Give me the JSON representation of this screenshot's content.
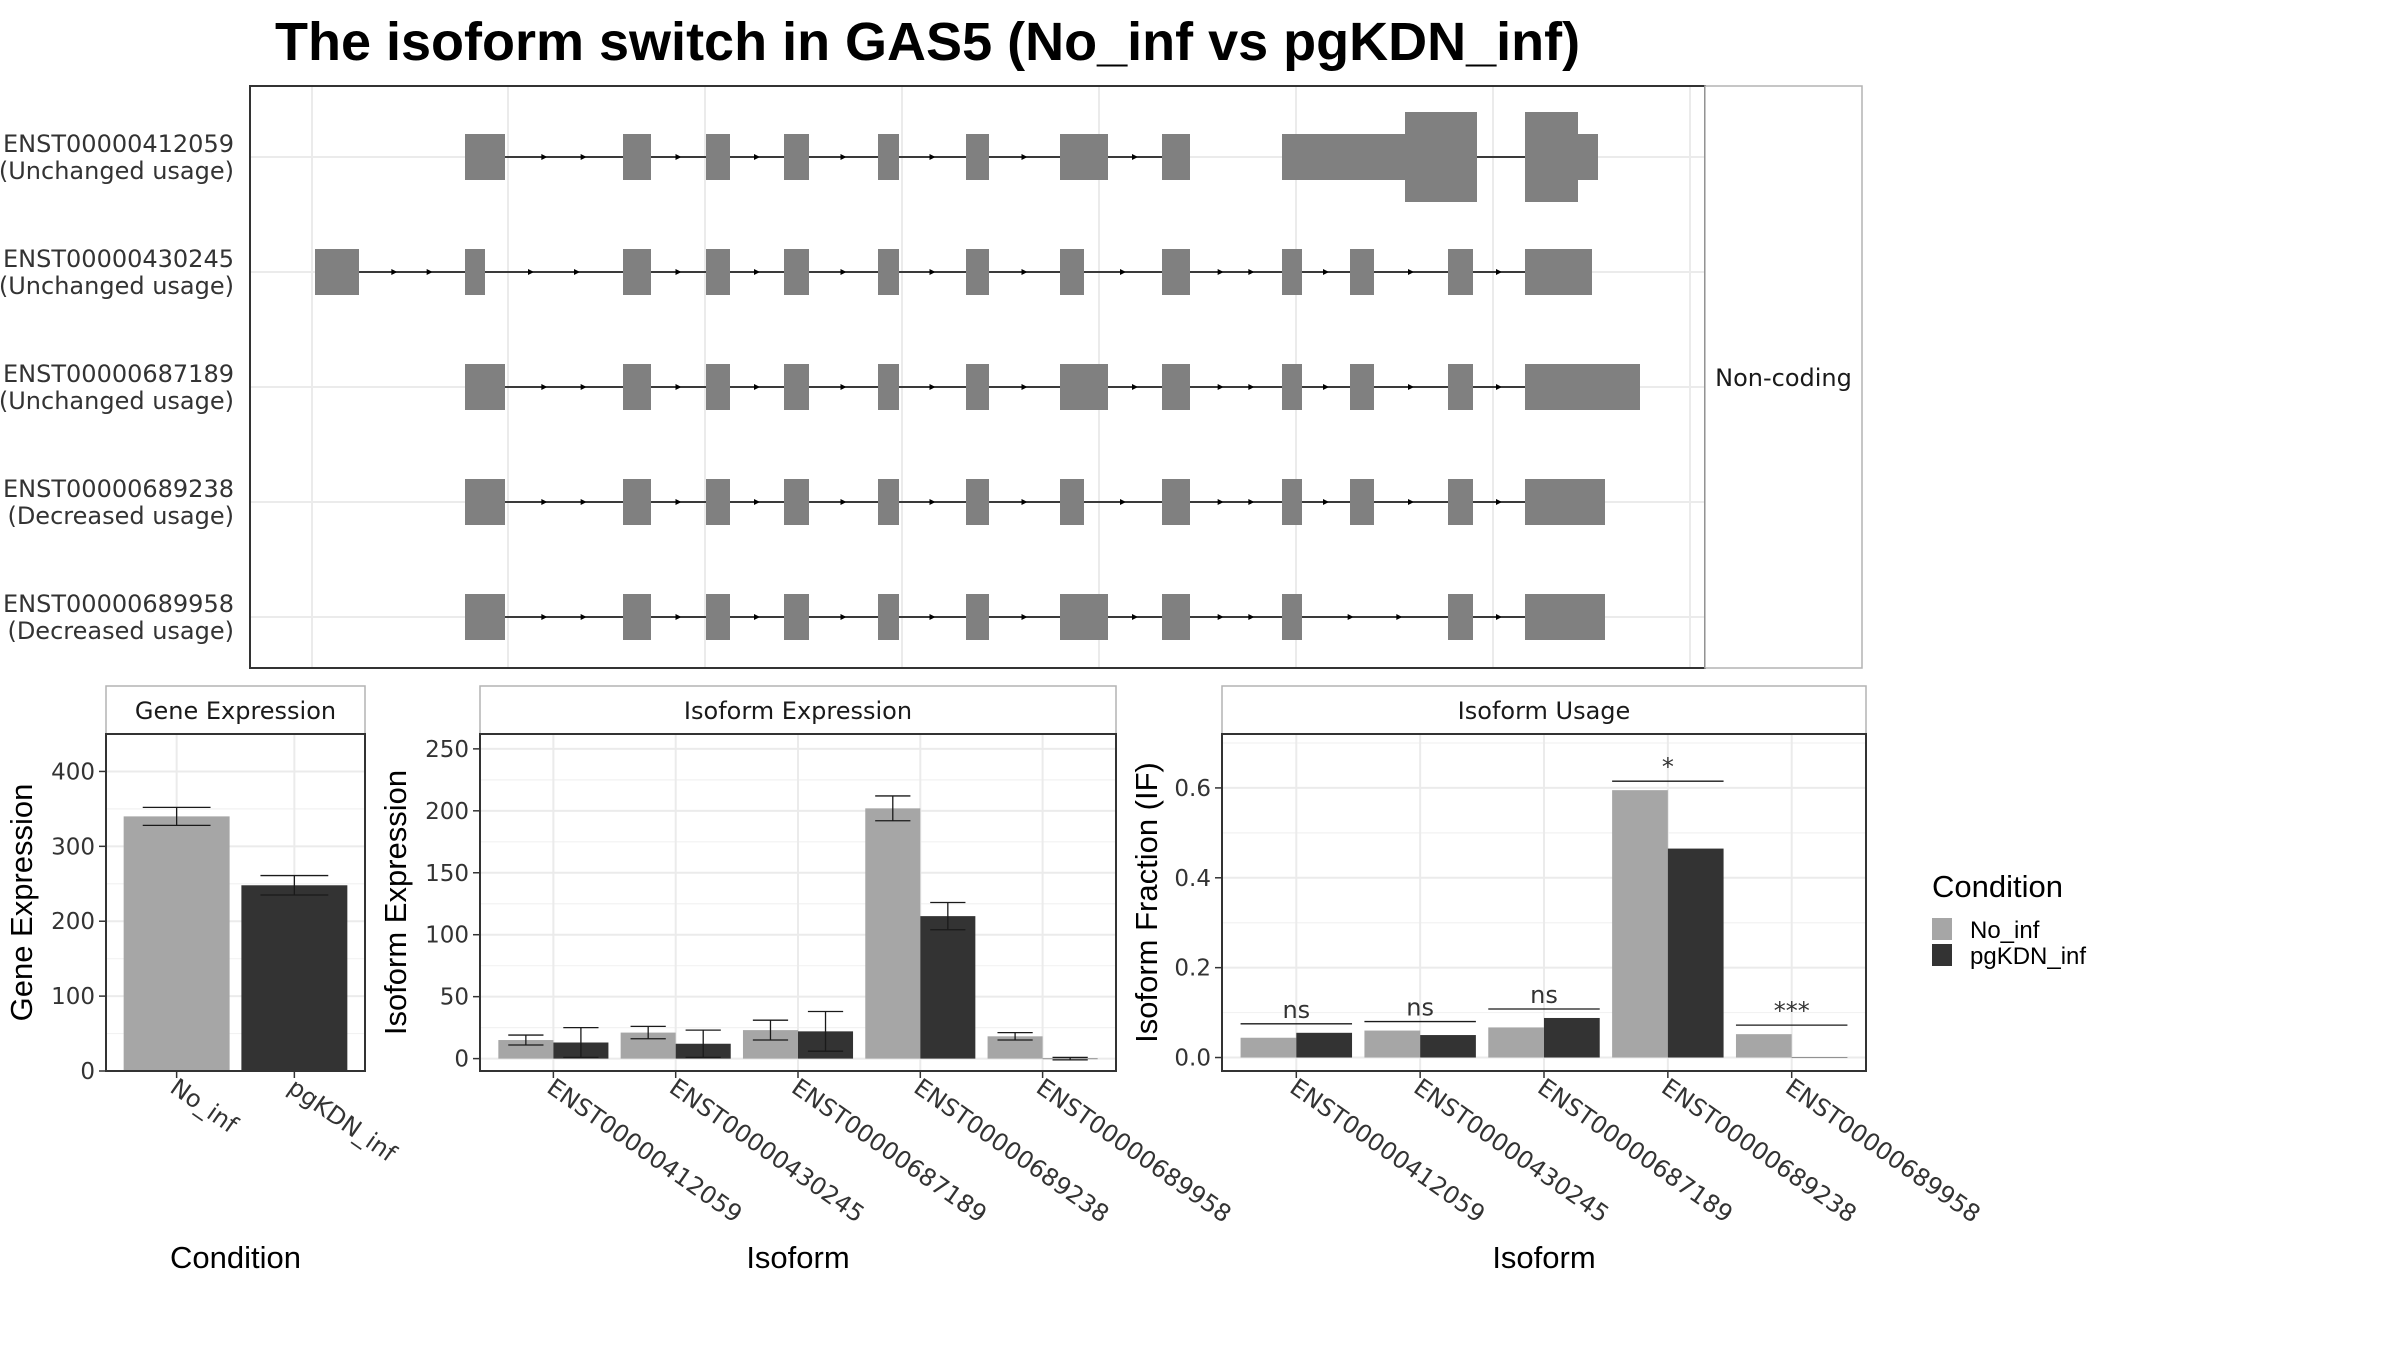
{
  "title": "The isoform switch in GAS5 (No_inf vs pgKDN_inf)",
  "colors": {
    "No_inf": "#a6a6a6",
    "pgKDN_inf": "#333333",
    "exon": "#808080",
    "grid": "#ebebeb",
    "panel_border": "#333333",
    "strip_border": "#b3b3b3"
  },
  "structure": {
    "facet_label": "Non-coding",
    "isoforms": [
      {
        "id": "ENST00000412059",
        "usage": "(Unchanged usage)"
      },
      {
        "id": "ENST00000430245",
        "usage": "(Unchanged usage)"
      },
      {
        "id": "ENST00000687189",
        "usage": "(Unchanged usage)"
      },
      {
        "id": "ENST00000689238",
        "usage": "(Decreased usage)"
      },
      {
        "id": "ENST00000689958",
        "usage": "(Decreased usage)"
      }
    ]
  },
  "legend": {
    "title": "Condition",
    "items": [
      "No_inf",
      "pgKDN_inf"
    ]
  },
  "chart_data": [
    {
      "type": "bar",
      "title": "Gene Expression",
      "xlabel": "Condition",
      "ylabel": "Gene Expression",
      "categories": [
        "No_inf",
        "pgKDN_inf"
      ],
      "values": [
        340,
        248
      ],
      "error": [
        12,
        13
      ],
      "ylim": [
        0,
        450
      ],
      "yticks": [
        0,
        100,
        200,
        300,
        400
      ],
      "grid": true
    },
    {
      "type": "bar",
      "title": "Isoform Expression",
      "xlabel": "Isoform",
      "ylabel": "Isoform Expression",
      "categories": [
        "ENST00000412059",
        "ENST00000430245",
        "ENST00000687189",
        "ENST00000689238",
        "ENST00000689958"
      ],
      "series": [
        {
          "name": "No_inf",
          "values": [
            15,
            21,
            23,
            202,
            18
          ],
          "error": [
            4,
            5,
            8,
            10,
            3
          ]
        },
        {
          "name": "pgKDN_inf",
          "values": [
            13,
            12,
            22,
            115,
            0
          ],
          "error": [
            12,
            11,
            16,
            11,
            1
          ]
        }
      ],
      "ylim": [
        -10,
        262
      ],
      "yticks": [
        0,
        50,
        100,
        150,
        200,
        250
      ],
      "grid": true
    },
    {
      "type": "bar",
      "title": "Isoform Usage",
      "xlabel": "Isoform",
      "ylabel": "Isoform Fraction (IF)",
      "categories": [
        "ENST00000412059",
        "ENST00000430245",
        "ENST00000687189",
        "ENST00000689238",
        "ENST00000689958"
      ],
      "series": [
        {
          "name": "No_inf",
          "values": [
            0.044,
            0.06,
            0.067,
            0.595,
            0.052
          ]
        },
        {
          "name": "pgKDN_inf",
          "values": [
            0.055,
            0.05,
            0.088,
            0.465,
            0.0
          ]
        }
      ],
      "significance": [
        "ns",
        "ns",
        "ns",
        "*",
        "***"
      ],
      "ylim": [
        -0.03,
        0.72
      ],
      "yticks": [
        0.0,
        0.2,
        0.4,
        0.6
      ],
      "grid": true
    }
  ]
}
